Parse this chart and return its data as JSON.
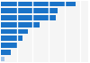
{
  "values": [
    4.68,
    3.56,
    3.48,
    2.42,
    1.72,
    1.38,
    1.1,
    0.62,
    0.25
  ],
  "bar_color": "#1a73c8",
  "last_bar_color": "#a0c4e8",
  "background_color": "#ffffff",
  "plot_bg_color": "#f5f5f5",
  "xlim": [
    0,
    5.5
  ],
  "grid_color": "#ffffff",
  "bar_height": 0.75
}
